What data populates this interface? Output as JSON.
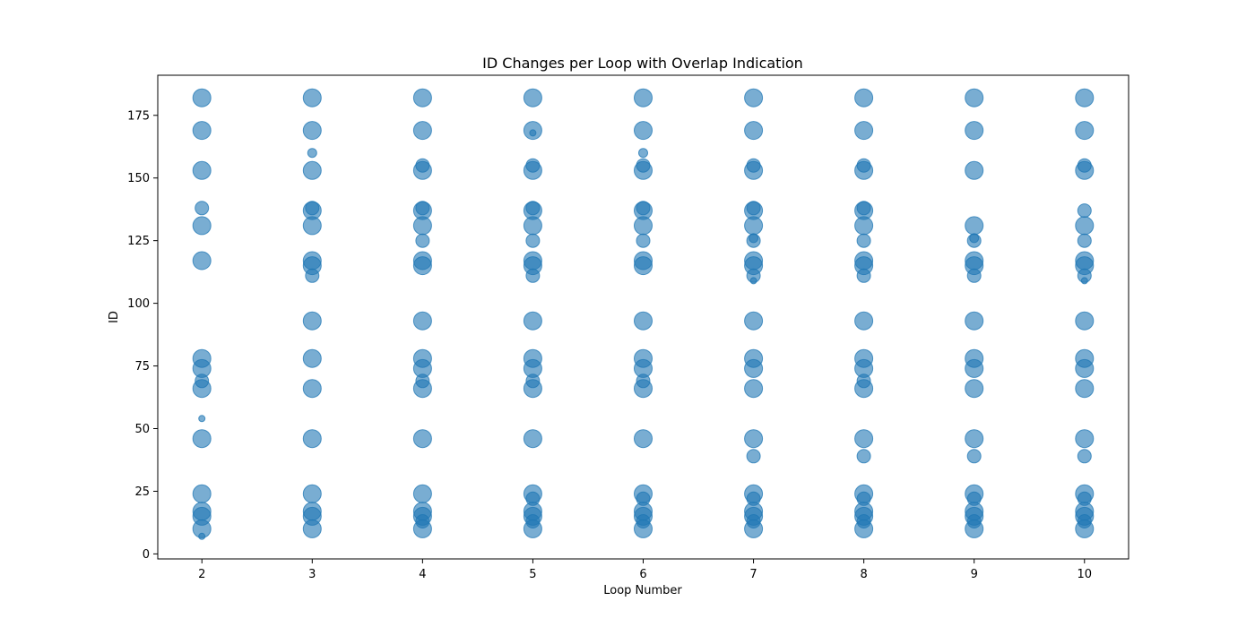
{
  "chart_data": {
    "type": "scatter",
    "title": "ID Changes per Loop with Overlap Indication",
    "xlabel": "Loop Number",
    "ylabel": "ID",
    "xlim": [
      1.6,
      10.4
    ],
    "ylim": [
      -2,
      191
    ],
    "xticks": [
      2,
      3,
      4,
      5,
      6,
      7,
      8,
      9,
      10
    ],
    "yticks": [
      0,
      25,
      50,
      75,
      100,
      125,
      150,
      175
    ],
    "grid": false,
    "color": "#1f77b4",
    "alpha": 0.6,
    "point_size_note": "larger markers for IDs present in both consecutive loops",
    "points": [
      {
        "x": 2,
        "y": 182,
        "s": "large"
      },
      {
        "x": 2,
        "y": 169,
        "s": "large"
      },
      {
        "x": 2,
        "y": 153,
        "s": "large"
      },
      {
        "x": 2,
        "y": 138,
        "s": "medium"
      },
      {
        "x": 2,
        "y": 131,
        "s": "large"
      },
      {
        "x": 2,
        "y": 117,
        "s": "large"
      },
      {
        "x": 2,
        "y": 78,
        "s": "large"
      },
      {
        "x": 2,
        "y": 74,
        "s": "large"
      },
      {
        "x": 2,
        "y": 69,
        "s": "medium"
      },
      {
        "x": 2,
        "y": 66,
        "s": "large"
      },
      {
        "x": 2,
        "y": 54,
        "s": "tiny"
      },
      {
        "x": 2,
        "y": 46,
        "s": "large"
      },
      {
        "x": 2,
        "y": 24,
        "s": "large"
      },
      {
        "x": 2,
        "y": 17,
        "s": "large"
      },
      {
        "x": 2,
        "y": 15,
        "s": "large"
      },
      {
        "x": 2,
        "y": 10,
        "s": "large"
      },
      {
        "x": 2,
        "y": 7,
        "s": "tiny"
      },
      {
        "x": 3,
        "y": 182,
        "s": "large"
      },
      {
        "x": 3,
        "y": 169,
        "s": "large"
      },
      {
        "x": 3,
        "y": 160,
        "s": "small"
      },
      {
        "x": 3,
        "y": 153,
        "s": "large"
      },
      {
        "x": 3,
        "y": 138,
        "s": "medium"
      },
      {
        "x": 3,
        "y": 137,
        "s": "large"
      },
      {
        "x": 3,
        "y": 131,
        "s": "large"
      },
      {
        "x": 3,
        "y": 117,
        "s": "large"
      },
      {
        "x": 3,
        "y": 115,
        "s": "large"
      },
      {
        "x": 3,
        "y": 111,
        "s": "medium"
      },
      {
        "x": 3,
        "y": 93,
        "s": "large"
      },
      {
        "x": 3,
        "y": 78,
        "s": "large"
      },
      {
        "x": 3,
        "y": 66,
        "s": "large"
      },
      {
        "x": 3,
        "y": 46,
        "s": "large"
      },
      {
        "x": 3,
        "y": 24,
        "s": "large"
      },
      {
        "x": 3,
        "y": 17,
        "s": "large"
      },
      {
        "x": 3,
        "y": 15,
        "s": "large"
      },
      {
        "x": 3,
        "y": 10,
        "s": "large"
      },
      {
        "x": 4,
        "y": 182,
        "s": "large"
      },
      {
        "x": 4,
        "y": 169,
        "s": "large"
      },
      {
        "x": 4,
        "y": 155,
        "s": "medium"
      },
      {
        "x": 4,
        "y": 153,
        "s": "large"
      },
      {
        "x": 4,
        "y": 138,
        "s": "medium"
      },
      {
        "x": 4,
        "y": 137,
        "s": "large"
      },
      {
        "x": 4,
        "y": 131,
        "s": "large"
      },
      {
        "x": 4,
        "y": 125,
        "s": "medium"
      },
      {
        "x": 4,
        "y": 117,
        "s": "large"
      },
      {
        "x": 4,
        "y": 115,
        "s": "large"
      },
      {
        "x": 4,
        "y": 93,
        "s": "large"
      },
      {
        "x": 4,
        "y": 78,
        "s": "large"
      },
      {
        "x": 4,
        "y": 74,
        "s": "large"
      },
      {
        "x": 4,
        "y": 69,
        "s": "medium"
      },
      {
        "x": 4,
        "y": 66,
        "s": "large"
      },
      {
        "x": 4,
        "y": 46,
        "s": "large"
      },
      {
        "x": 4,
        "y": 24,
        "s": "large"
      },
      {
        "x": 4,
        "y": 17,
        "s": "large"
      },
      {
        "x": 4,
        "y": 15,
        "s": "large"
      },
      {
        "x": 4,
        "y": 13,
        "s": "medium"
      },
      {
        "x": 4,
        "y": 10,
        "s": "large"
      },
      {
        "x": 5,
        "y": 182,
        "s": "large"
      },
      {
        "x": 5,
        "y": 169,
        "s": "large"
      },
      {
        "x": 5,
        "y": 168,
        "s": "tiny"
      },
      {
        "x": 5,
        "y": 155,
        "s": "medium"
      },
      {
        "x": 5,
        "y": 153,
        "s": "large"
      },
      {
        "x": 5,
        "y": 138,
        "s": "medium"
      },
      {
        "x": 5,
        "y": 137,
        "s": "large"
      },
      {
        "x": 5,
        "y": 131,
        "s": "large"
      },
      {
        "x": 5,
        "y": 125,
        "s": "medium"
      },
      {
        "x": 5,
        "y": 117,
        "s": "large"
      },
      {
        "x": 5,
        "y": 115,
        "s": "large"
      },
      {
        "x": 5,
        "y": 111,
        "s": "medium"
      },
      {
        "x": 5,
        "y": 93,
        "s": "large"
      },
      {
        "x": 5,
        "y": 78,
        "s": "large"
      },
      {
        "x": 5,
        "y": 74,
        "s": "large"
      },
      {
        "x": 5,
        "y": 69,
        "s": "medium"
      },
      {
        "x": 5,
        "y": 66,
        "s": "large"
      },
      {
        "x": 5,
        "y": 46,
        "s": "large"
      },
      {
        "x": 5,
        "y": 24,
        "s": "large"
      },
      {
        "x": 5,
        "y": 22,
        "s": "medium"
      },
      {
        "x": 5,
        "y": 17,
        "s": "large"
      },
      {
        "x": 5,
        "y": 15,
        "s": "large"
      },
      {
        "x": 5,
        "y": 13,
        "s": "medium"
      },
      {
        "x": 5,
        "y": 10,
        "s": "large"
      },
      {
        "x": 6,
        "y": 182,
        "s": "large"
      },
      {
        "x": 6,
        "y": 169,
        "s": "large"
      },
      {
        "x": 6,
        "y": 160,
        "s": "small"
      },
      {
        "x": 6,
        "y": 155,
        "s": "medium"
      },
      {
        "x": 6,
        "y": 153,
        "s": "large"
      },
      {
        "x": 6,
        "y": 138,
        "s": "medium"
      },
      {
        "x": 6,
        "y": 137,
        "s": "large"
      },
      {
        "x": 6,
        "y": 131,
        "s": "large"
      },
      {
        "x": 6,
        "y": 125,
        "s": "medium"
      },
      {
        "x": 6,
        "y": 117,
        "s": "large"
      },
      {
        "x": 6,
        "y": 115,
        "s": "large"
      },
      {
        "x": 6,
        "y": 93,
        "s": "large"
      },
      {
        "x": 6,
        "y": 78,
        "s": "large"
      },
      {
        "x": 6,
        "y": 74,
        "s": "large"
      },
      {
        "x": 6,
        "y": 69,
        "s": "medium"
      },
      {
        "x": 6,
        "y": 66,
        "s": "large"
      },
      {
        "x": 6,
        "y": 46,
        "s": "large"
      },
      {
        "x": 6,
        "y": 24,
        "s": "large"
      },
      {
        "x": 6,
        "y": 22,
        "s": "medium"
      },
      {
        "x": 6,
        "y": 17,
        "s": "large"
      },
      {
        "x": 6,
        "y": 15,
        "s": "large"
      },
      {
        "x": 6,
        "y": 13,
        "s": "medium"
      },
      {
        "x": 6,
        "y": 10,
        "s": "large"
      },
      {
        "x": 7,
        "y": 182,
        "s": "large"
      },
      {
        "x": 7,
        "y": 169,
        "s": "large"
      },
      {
        "x": 7,
        "y": 155,
        "s": "medium"
      },
      {
        "x": 7,
        "y": 153,
        "s": "large"
      },
      {
        "x": 7,
        "y": 138,
        "s": "medium"
      },
      {
        "x": 7,
        "y": 137,
        "s": "large"
      },
      {
        "x": 7,
        "y": 131,
        "s": "large"
      },
      {
        "x": 7,
        "y": 126,
        "s": "small"
      },
      {
        "x": 7,
        "y": 125,
        "s": "medium"
      },
      {
        "x": 7,
        "y": 117,
        "s": "large"
      },
      {
        "x": 7,
        "y": 115,
        "s": "large"
      },
      {
        "x": 7,
        "y": 111,
        "s": "medium"
      },
      {
        "x": 7,
        "y": 109,
        "s": "tiny"
      },
      {
        "x": 7,
        "y": 93,
        "s": "large"
      },
      {
        "x": 7,
        "y": 78,
        "s": "large"
      },
      {
        "x": 7,
        "y": 74,
        "s": "large"
      },
      {
        "x": 7,
        "y": 66,
        "s": "large"
      },
      {
        "x": 7,
        "y": 46,
        "s": "large"
      },
      {
        "x": 7,
        "y": 39,
        "s": "medium"
      },
      {
        "x": 7,
        "y": 24,
        "s": "large"
      },
      {
        "x": 7,
        "y": 22,
        "s": "medium"
      },
      {
        "x": 7,
        "y": 17,
        "s": "large"
      },
      {
        "x": 7,
        "y": 15,
        "s": "large"
      },
      {
        "x": 7,
        "y": 13,
        "s": "medium"
      },
      {
        "x": 7,
        "y": 10,
        "s": "large"
      },
      {
        "x": 8,
        "y": 182,
        "s": "large"
      },
      {
        "x": 8,
        "y": 169,
        "s": "large"
      },
      {
        "x": 8,
        "y": 155,
        "s": "medium"
      },
      {
        "x": 8,
        "y": 153,
        "s": "large"
      },
      {
        "x": 8,
        "y": 138,
        "s": "medium"
      },
      {
        "x": 8,
        "y": 137,
        "s": "large"
      },
      {
        "x": 8,
        "y": 131,
        "s": "large"
      },
      {
        "x": 8,
        "y": 125,
        "s": "medium"
      },
      {
        "x": 8,
        "y": 117,
        "s": "large"
      },
      {
        "x": 8,
        "y": 115,
        "s": "large"
      },
      {
        "x": 8,
        "y": 111,
        "s": "medium"
      },
      {
        "x": 8,
        "y": 93,
        "s": "large"
      },
      {
        "x": 8,
        "y": 78,
        "s": "large"
      },
      {
        "x": 8,
        "y": 74,
        "s": "large"
      },
      {
        "x": 8,
        "y": 69,
        "s": "medium"
      },
      {
        "x": 8,
        "y": 66,
        "s": "large"
      },
      {
        "x": 8,
        "y": 46,
        "s": "large"
      },
      {
        "x": 8,
        "y": 39,
        "s": "medium"
      },
      {
        "x": 8,
        "y": 24,
        "s": "large"
      },
      {
        "x": 8,
        "y": 22,
        "s": "medium"
      },
      {
        "x": 8,
        "y": 17,
        "s": "large"
      },
      {
        "x": 8,
        "y": 15,
        "s": "large"
      },
      {
        "x": 8,
        "y": 13,
        "s": "medium"
      },
      {
        "x": 8,
        "y": 10,
        "s": "large"
      },
      {
        "x": 9,
        "y": 182,
        "s": "large"
      },
      {
        "x": 9,
        "y": 169,
        "s": "large"
      },
      {
        "x": 9,
        "y": 153,
        "s": "large"
      },
      {
        "x": 9,
        "y": 131,
        "s": "large"
      },
      {
        "x": 9,
        "y": 126,
        "s": "small"
      },
      {
        "x": 9,
        "y": 125,
        "s": "medium"
      },
      {
        "x": 9,
        "y": 117,
        "s": "large"
      },
      {
        "x": 9,
        "y": 115,
        "s": "large"
      },
      {
        "x": 9,
        "y": 111,
        "s": "medium"
      },
      {
        "x": 9,
        "y": 93,
        "s": "large"
      },
      {
        "x": 9,
        "y": 78,
        "s": "large"
      },
      {
        "x": 9,
        "y": 74,
        "s": "large"
      },
      {
        "x": 9,
        "y": 66,
        "s": "large"
      },
      {
        "x": 9,
        "y": 46,
        "s": "large"
      },
      {
        "x": 9,
        "y": 39,
        "s": "medium"
      },
      {
        "x": 9,
        "y": 24,
        "s": "large"
      },
      {
        "x": 9,
        "y": 22,
        "s": "medium"
      },
      {
        "x": 9,
        "y": 17,
        "s": "large"
      },
      {
        "x": 9,
        "y": 15,
        "s": "large"
      },
      {
        "x": 9,
        "y": 13,
        "s": "medium"
      },
      {
        "x": 9,
        "y": 10,
        "s": "large"
      },
      {
        "x": 10,
        "y": 182,
        "s": "large"
      },
      {
        "x": 10,
        "y": 169,
        "s": "large"
      },
      {
        "x": 10,
        "y": 155,
        "s": "medium"
      },
      {
        "x": 10,
        "y": 153,
        "s": "large"
      },
      {
        "x": 10,
        "y": 137,
        "s": "medium"
      },
      {
        "x": 10,
        "y": 131,
        "s": "large"
      },
      {
        "x": 10,
        "y": 125,
        "s": "medium"
      },
      {
        "x": 10,
        "y": 117,
        "s": "large"
      },
      {
        "x": 10,
        "y": 115,
        "s": "large"
      },
      {
        "x": 10,
        "y": 111,
        "s": "medium"
      },
      {
        "x": 10,
        "y": 109,
        "s": "tiny"
      },
      {
        "x": 10,
        "y": 93,
        "s": "large"
      },
      {
        "x": 10,
        "y": 78,
        "s": "large"
      },
      {
        "x": 10,
        "y": 74,
        "s": "large"
      },
      {
        "x": 10,
        "y": 66,
        "s": "large"
      },
      {
        "x": 10,
        "y": 46,
        "s": "large"
      },
      {
        "x": 10,
        "y": 39,
        "s": "medium"
      },
      {
        "x": 10,
        "y": 24,
        "s": "large"
      },
      {
        "x": 10,
        "y": 22,
        "s": "medium"
      },
      {
        "x": 10,
        "y": 17,
        "s": "large"
      },
      {
        "x": 10,
        "y": 15,
        "s": "large"
      },
      {
        "x": 10,
        "y": 13,
        "s": "medium"
      },
      {
        "x": 10,
        "y": 10,
        "s": "large"
      }
    ]
  }
}
